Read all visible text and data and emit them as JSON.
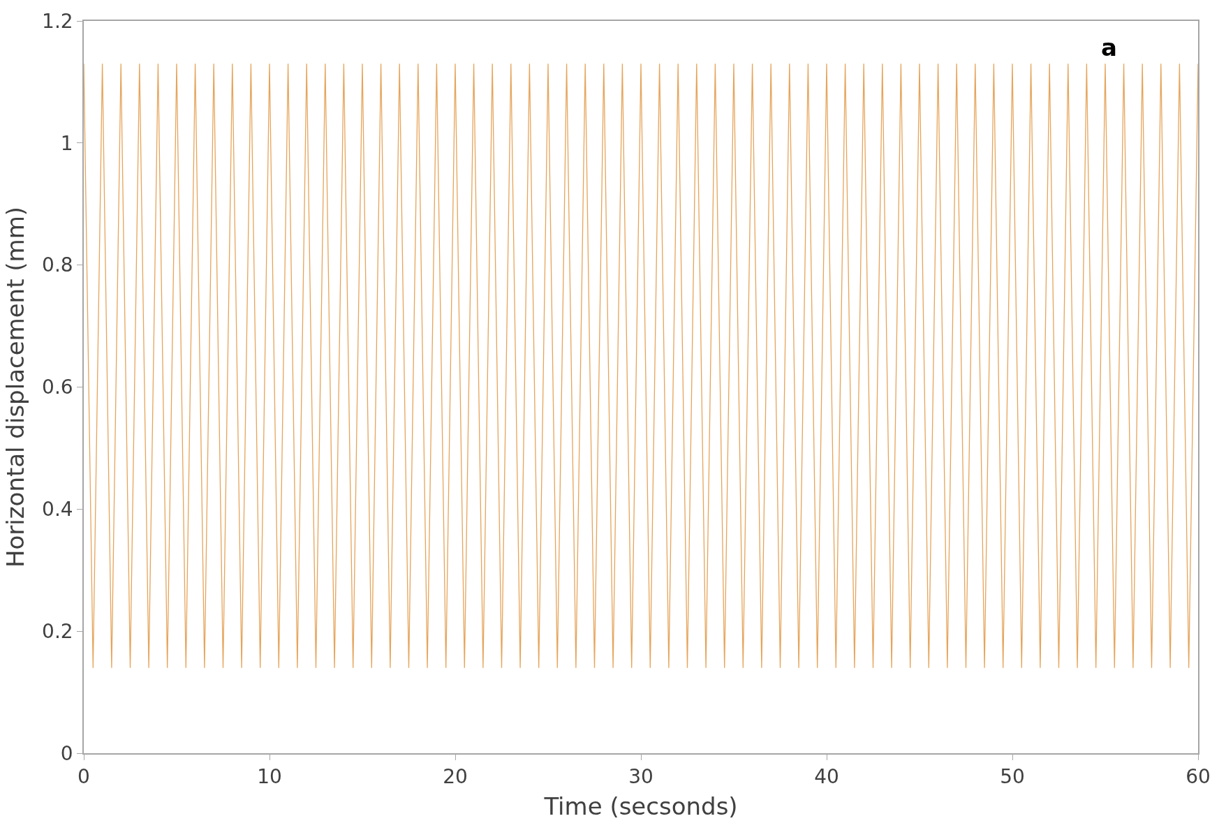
{
  "chart_data": {
    "type": "line",
    "xlabel": "Time (secsonds)",
    "ylabel": "Horizontal displacement (mm)",
    "xlim": [
      0,
      60
    ],
    "xticks": [
      0,
      10,
      20,
      30,
      40,
      50,
      60
    ],
    "ylim": [
      0,
      1.2
    ],
    "yticks": [
      0,
      {
        "value": 0.2,
        "label": "0.2"
      },
      {
        "value": 0.4,
        "label": "0.4"
      },
      {
        "value": 0.6,
        "label": "0.6"
      },
      {
        "value": 0.8,
        "label": "0.8"
      },
      1,
      {
        "value": 1.2,
        "label": "1.2"
      }
    ],
    "marker": "none",
    "line_style": "solid",
    "annotations": [
      "a"
    ],
    "x": [
      0,
      0.5,
      1,
      1.5,
      2,
      2.5,
      3,
      3.5,
      4,
      4.5,
      5,
      5.5,
      6,
      6.5,
      7,
      7.5,
      8,
      8.5,
      9,
      9.5,
      10,
      10.5,
      11,
      11.5,
      12,
      12.5,
      13,
      13.5,
      14,
      14.5,
      15,
      15.5,
      16,
      16.5,
      17,
      17.5,
      18,
      18.5,
      19,
      19.5,
      20,
      20.5,
      21,
      21.5,
      22,
      22.5,
      23,
      23.5,
      24,
      24.5,
      25,
      25.5,
      26,
      26.5,
      27,
      27.5,
      28,
      28.5,
      29,
      29.5,
      30,
      30.5,
      31,
      31.5,
      32,
      32.5,
      33,
      33.5,
      34,
      34.5,
      35,
      35.5,
      36,
      36.5,
      37,
      37.5,
      38,
      38.5,
      39,
      39.5,
      40,
      40.5,
      41,
      41.5,
      42,
      42.5,
      43,
      43.5,
      44,
      44.5,
      45,
      45.5,
      46,
      46.5,
      47,
      47.5,
      48,
      48.5,
      49,
      49.5,
      50,
      50.5,
      51,
      51.5,
      52,
      52.5,
      53,
      53.5,
      54,
      54.5,
      55,
      55.5,
      56,
      56.5,
      57,
      57.5,
      58,
      58.5,
      59,
      59.5,
      60
    ],
    "series": [
      {
        "color": "#e6a45a",
        "values": [
          1.13,
          0.14,
          1.13,
          0.14,
          1.13,
          0.14,
          1.13,
          0.14,
          1.13,
          0.14,
          1.13,
          0.14,
          1.13,
          0.14,
          1.13,
          0.14,
          1.13,
          0.14,
          1.13,
          0.14,
          1.13,
          0.14,
          1.13,
          0.14,
          1.13,
          0.14,
          1.13,
          0.14,
          1.13,
          0.14,
          1.13,
          0.14,
          1.13,
          0.14,
          1.13,
          0.14,
          1.13,
          0.14,
          1.13,
          0.14,
          1.13,
          0.14,
          1.13,
          0.14,
          1.13,
          0.14,
          1.13,
          0.14,
          1.13,
          0.14,
          1.13,
          0.14,
          1.13,
          0.14,
          1.13,
          0.14,
          1.13,
          0.14,
          1.13,
          0.14,
          1.13,
          0.14,
          1.13,
          0.14,
          1.13,
          0.14,
          1.13,
          0.14,
          1.13,
          0.14,
          1.13,
          0.14,
          1.13,
          0.14,
          1.13,
          0.14,
          1.13,
          0.14,
          1.13,
          0.14,
          1.13,
          0.14,
          1.13,
          0.14,
          1.13,
          0.14,
          1.13,
          0.14,
          1.13,
          0.14,
          1.13,
          0.14,
          1.13,
          0.14,
          1.13,
          0.14,
          1.13,
          0.14,
          1.13,
          0.14,
          1.13,
          0.14,
          1.13,
          0.14,
          1.13,
          0.14,
          1.13,
          0.14,
          1.13,
          0.14,
          1.13,
          0.14,
          1.13,
          0.14,
          1.13,
          0.14,
          1.13,
          0.14,
          1.13,
          0.14,
          1.13
        ]
      }
    ]
  }
}
